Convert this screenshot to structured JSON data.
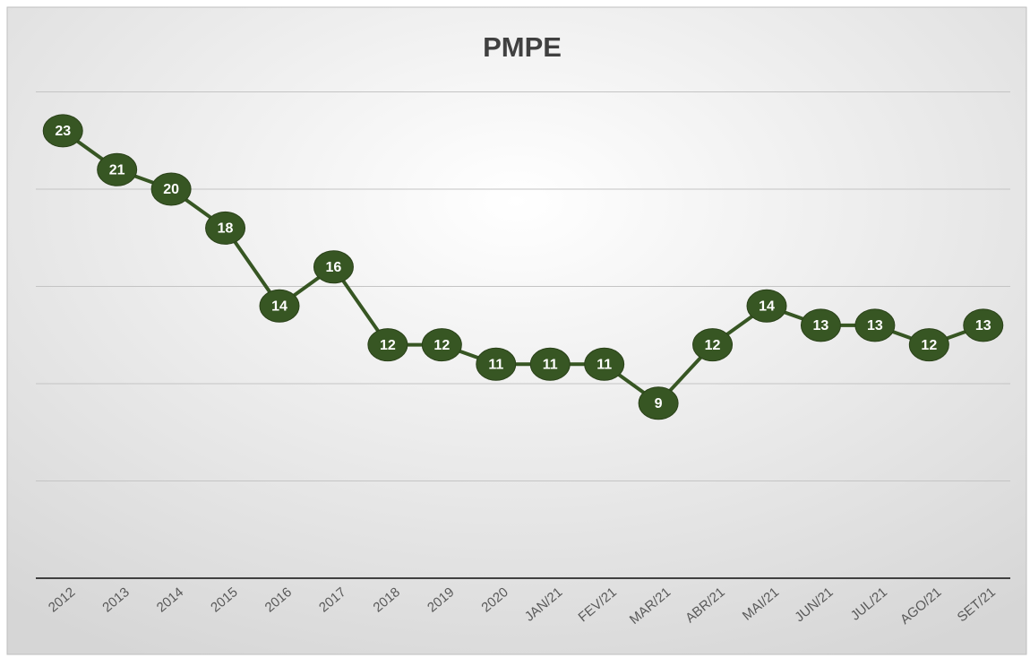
{
  "chart_data": {
    "type": "line",
    "title": "PMPE",
    "categories": [
      "2012",
      "2013",
      "2014",
      "2015",
      "2016",
      "2017",
      "2018",
      "2019",
      "2020",
      "JAN/21",
      "FEV/21",
      "MAR/21",
      "ABR/21",
      "MAI/21",
      "JUN/21",
      "JUL/21",
      "AGO/21",
      "SET/21"
    ],
    "values": [
      23,
      21,
      20,
      18,
      14,
      16,
      12,
      12,
      11,
      11,
      11,
      9,
      12,
      14,
      13,
      13,
      12,
      13
    ],
    "color": "#375623",
    "ylim": [
      0,
      25
    ],
    "yticks": [
      0,
      5,
      10,
      15,
      20,
      25
    ],
    "show_ytick_labels": false,
    "grid": true
  }
}
